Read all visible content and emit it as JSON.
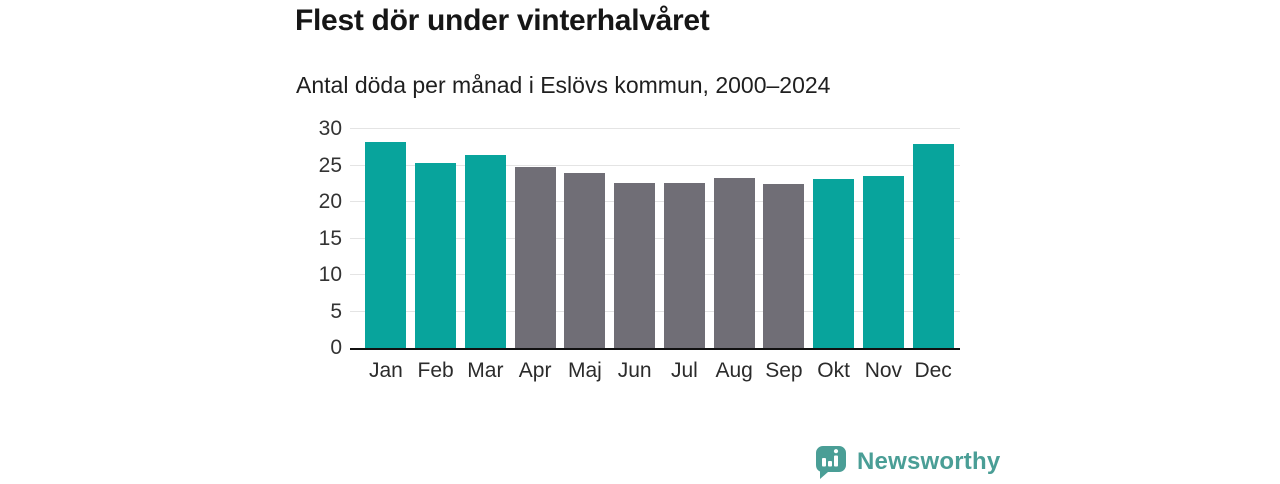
{
  "title": "Flest dör under vinterhalvåret",
  "subtitle": "Antal döda per månad i Eslövs kommun, 2000–2024",
  "colors": {
    "winter_bar": "#08a49c",
    "summer_bar": "#706e76",
    "gridline": "#e4e4e4",
    "axis_line": "#111111",
    "tick_text": "#333333",
    "brand_teal": "#4a9e96"
  },
  "chart_data": {
    "type": "bar",
    "categories": [
      "Jan",
      "Feb",
      "Mar",
      "Apr",
      "Maj",
      "Jun",
      "Jul",
      "Aug",
      "Sep",
      "Okt",
      "Nov",
      "Dec"
    ],
    "values": [
      28.2,
      25.4,
      26.5,
      24.8,
      24.0,
      22.6,
      22.6,
      23.3,
      22.5,
      23.2,
      23.6,
      28.0
    ],
    "bar_colors": [
      "#08a49c",
      "#08a49c",
      "#08a49c",
      "#706e76",
      "#706e76",
      "#706e76",
      "#706e76",
      "#706e76",
      "#706e76",
      "#08a49c",
      "#08a49c",
      "#08a49c"
    ],
    "title": "Flest dör under vinterhalvåret",
    "subtitle": "Antal döda per månad i Eslövs kommun, 2000–2024",
    "xlabel": "",
    "ylabel": "",
    "ylim": [
      0,
      30
    ],
    "yticks": [
      0,
      5,
      10,
      15,
      20,
      25,
      30
    ],
    "grid": true,
    "legend": false
  },
  "footer": {
    "brand": "Newsworthy",
    "logo_icon": "bar-chart-speech-bubble-icon"
  }
}
